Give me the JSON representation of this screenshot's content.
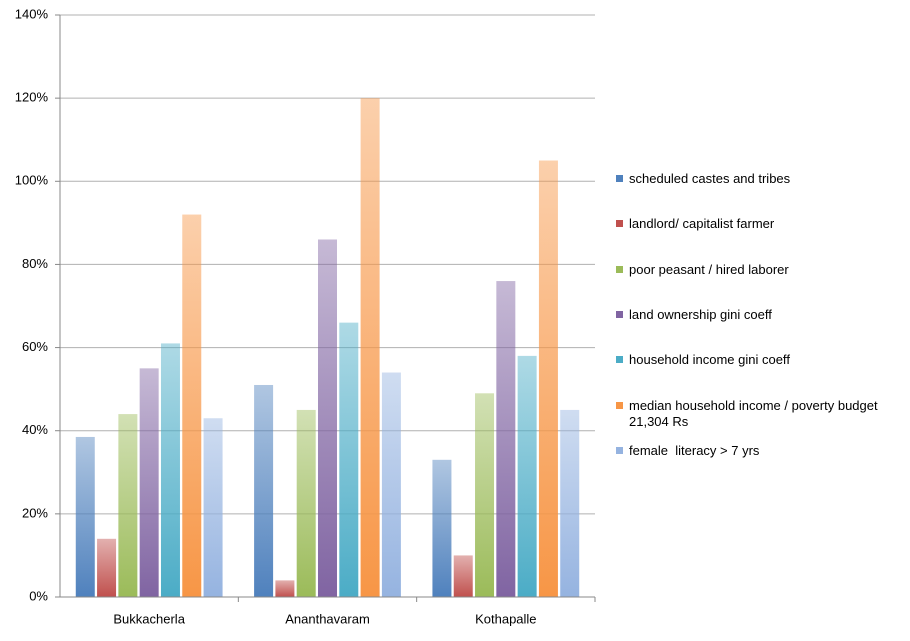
{
  "chart_data": {
    "type": "bar",
    "categories": [
      "Bukkacherla",
      "Ananthavaram",
      "Kothapalle"
    ],
    "series": [
      {
        "name": "scheduled castes and tribes",
        "color": "#4f81bd",
        "values": [
          38.5,
          51,
          33
        ]
      },
      {
        "name": "landlord/ capitalist farmer",
        "color": "#c0504d",
        "values": [
          14,
          4,
          10
        ]
      },
      {
        "name": "poor peasant / hired laborer",
        "color": "#9bbb59",
        "values": [
          44,
          45,
          49
        ]
      },
      {
        "name": "land ownership gini coeff",
        "color": "#8064a2",
        "values": [
          55,
          86,
          76
        ]
      },
      {
        "name": "household income gini coeff",
        "color": "#4bacc6",
        "values": [
          61,
          66,
          58
        ]
      },
      {
        "name": "median household income / poverty budget 21,304 Rs",
        "color": "#f79646",
        "values": [
          92,
          120,
          105
        ]
      },
      {
        "name": "female  literacy > 7 yrs",
        "color": "#95b3e0",
        "values": [
          43,
          54,
          45
        ]
      }
    ],
    "ylim": [
      0,
      140
    ],
    "yticks": [
      {
        "value": 0,
        "label": "0%"
      },
      {
        "value": 20,
        "label": "20%"
      },
      {
        "value": 40,
        "label": "40%"
      },
      {
        "value": 60,
        "label": "60%"
      },
      {
        "value": 80,
        "label": "80%"
      },
      {
        "value": 100,
        "label": "100%"
      },
      {
        "value": 120,
        "label": "120%"
      },
      {
        "value": 140,
        "label": "140%"
      }
    ],
    "grid": true
  }
}
